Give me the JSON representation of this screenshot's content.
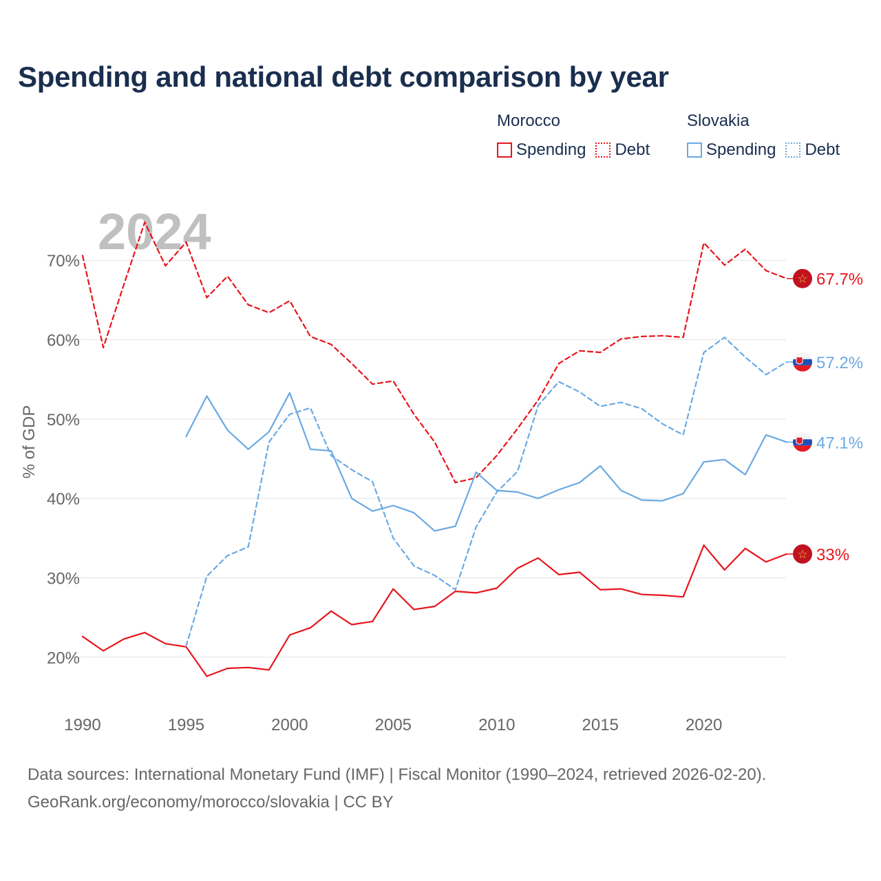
{
  "title": "Spending and national debt comparison by year",
  "legend": {
    "groups": [
      {
        "country": "Morocco",
        "color": "#e8141b",
        "items": [
          {
            "label": "Spending",
            "style": "solid"
          },
          {
            "label": "Debt",
            "style": "dotted"
          }
        ]
      },
      {
        "country": "Slovakia",
        "color": "#6aa9e2",
        "items": [
          {
            "label": "Spending",
            "style": "solid"
          },
          {
            "label": "Debt",
            "style": "dotted"
          }
        ]
      }
    ]
  },
  "watermark_year": "2024",
  "source": {
    "line1": "Data sources: International Monetary Fund (IMF) | Fiscal Monitor (1990–2024, retrieved 2026-02-20).",
    "line2": "GeoRank.org/economy/morocco/slovakia | CC BY"
  },
  "chart_data": {
    "type": "line",
    "title": "Spending and national debt comparison by year",
    "ylabel": "% of GDP",
    "xlabel": "",
    "x_range": [
      1990,
      2024
    ],
    "ylim": [
      14,
      76
    ],
    "y_ticks": [
      20,
      30,
      40,
      50,
      60,
      70
    ],
    "y_tick_labels": [
      "20%",
      "30%",
      "40%",
      "50%",
      "60%",
      "70%"
    ],
    "x_ticks": [
      1990,
      1995,
      2000,
      2005,
      2010,
      2015,
      2020
    ],
    "x_tick_labels": [
      "1990",
      "1995",
      "2000",
      "2005",
      "2010",
      "2015",
      "2020"
    ],
    "grid": true,
    "series": [
      {
        "name": "Morocco Debt",
        "country": "Morocco",
        "kind": "debt",
        "color": "#e8141b",
        "dash": true,
        "end_label": "67.7%",
        "flag": "morocco",
        "x": [
          1990,
          1991,
          1992,
          1993,
          1994,
          1995,
          1996,
          1997,
          1998,
          1999,
          2000,
          2001,
          2002,
          2003,
          2004,
          2005,
          2006,
          2007,
          2008,
          2009,
          2010,
          2011,
          2012,
          2013,
          2014,
          2015,
          2016,
          2017,
          2018,
          2019,
          2020,
          2021,
          2022,
          2023,
          2024
        ],
        "values": [
          70.6,
          59.0,
          67.0,
          74.8,
          69.3,
          72.3,
          65.3,
          68.0,
          64.4,
          63.4,
          64.9,
          60.4,
          59.4,
          57.0,
          54.4,
          54.8,
          50.6,
          47.1,
          42.0,
          42.6,
          45.4,
          48.8,
          52.4,
          57.0,
          58.6,
          58.4,
          60.1,
          60.4,
          60.5,
          60.3,
          72.2,
          69.4,
          71.4,
          68.7,
          67.7
        ]
      },
      {
        "name": "Morocco Spending",
        "country": "Morocco",
        "kind": "spending",
        "color": "#e8141b",
        "dash": false,
        "end_label": "33%",
        "flag": "morocco",
        "x": [
          1990,
          1991,
          1992,
          1993,
          1994,
          1995,
          1996,
          1997,
          1998,
          1999,
          2000,
          2001,
          2002,
          2003,
          2004,
          2005,
          2006,
          2007,
          2008,
          2009,
          2010,
          2011,
          2012,
          2013,
          2014,
          2015,
          2016,
          2017,
          2018,
          2019,
          2020,
          2021,
          2022,
          2023,
          2024
        ],
        "values": [
          22.6,
          20.8,
          22.3,
          23.1,
          21.7,
          21.3,
          17.6,
          18.6,
          18.7,
          18.4,
          22.8,
          23.7,
          25.8,
          24.1,
          24.5,
          28.6,
          26.0,
          26.4,
          28.3,
          28.1,
          28.7,
          31.2,
          32.5,
          30.4,
          30.7,
          28.5,
          28.6,
          27.9,
          27.8,
          27.6,
          34.1,
          31.0,
          33.7,
          32.0,
          33.0
        ]
      },
      {
        "name": "Slovakia Debt",
        "country": "Slovakia",
        "kind": "debt",
        "color": "#6aa9e2",
        "dash": true,
        "end_label": "57.2%",
        "flag": "slovakia",
        "x": [
          1995,
          1996,
          1997,
          1998,
          1999,
          2000,
          2001,
          2002,
          2003,
          2004,
          2005,
          2006,
          2007,
          2008,
          2009,
          2010,
          2011,
          2012,
          2013,
          2014,
          2015,
          2016,
          2017,
          2018,
          2019,
          2020,
          2021,
          2022,
          2023,
          2024
        ],
        "values": [
          21.4,
          30.2,
          32.8,
          33.9,
          47.1,
          50.6,
          51.4,
          45.4,
          43.6,
          42.1,
          35.0,
          31.5,
          30.3,
          28.5,
          36.4,
          40.8,
          43.4,
          51.7,
          54.7,
          53.4,
          51.6,
          52.1,
          51.3,
          49.4,
          48.0,
          58.4,
          60.3,
          57.8,
          55.6,
          57.2
        ]
      },
      {
        "name": "Slovakia Spending",
        "country": "Slovakia",
        "kind": "spending",
        "color": "#6aa9e2",
        "dash": false,
        "end_label": "47.1%",
        "flag": "slovakia",
        "x": [
          1995,
          1996,
          1997,
          1998,
          1999,
          2000,
          2001,
          2002,
          2003,
          2004,
          2005,
          2006,
          2007,
          2008,
          2009,
          2010,
          2011,
          2012,
          2013,
          2014,
          2015,
          2016,
          2017,
          2018,
          2019,
          2020,
          2021,
          2022,
          2023,
          2024
        ],
        "values": [
          47.8,
          52.9,
          48.6,
          46.2,
          48.4,
          53.3,
          46.2,
          46.0,
          40.0,
          38.4,
          39.1,
          38.2,
          35.9,
          36.5,
          43.3,
          41.0,
          40.8,
          40.0,
          41.1,
          42.0,
          44.1,
          41.0,
          39.8,
          39.7,
          40.6,
          44.6,
          44.9,
          43.0,
          48.0,
          47.1
        ]
      }
    ]
  }
}
